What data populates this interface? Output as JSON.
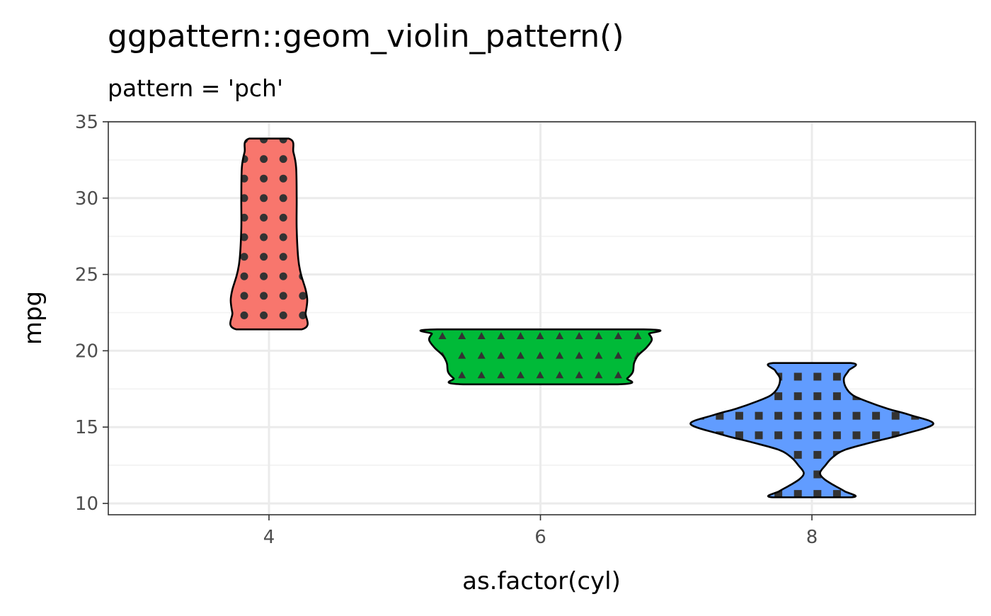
{
  "chart_data": {
    "type": "violin",
    "title": "ggpattern::geom_violin_pattern()",
    "subtitle": "pattern = 'pch'",
    "xlabel": "as.factor(cyl)",
    "ylabel": "mpg",
    "categories": [
      "4",
      "6",
      "8"
    ],
    "ylim": [
      9.4,
      35
    ],
    "yticks": [
      10,
      15,
      20,
      25,
      30,
      35
    ],
    "ytick_labels": [
      "10",
      "15",
      "20",
      "25",
      "30",
      "35"
    ],
    "grid": true,
    "theme": "bw",
    "pattern": "pch",
    "pattern_color": "#333333",
    "border_color": "#000000",
    "series": [
      {
        "category": "4",
        "fill": "#F8766D",
        "pch_shape": "circle",
        "profile": [
          [
            21.4,
            0.12
          ],
          [
            22.5,
            0.135
          ],
          [
            23.3,
            0.141
          ],
          [
            24,
            0.135
          ],
          [
            25,
            0.118
          ],
          [
            26,
            0.108
          ],
          [
            28,
            0.102
          ],
          [
            30,
            0.102
          ],
          [
            32,
            0.1
          ],
          [
            33,
            0.09
          ],
          [
            33.9,
            0.073
          ]
        ]
      },
      {
        "category": "6",
        "fill": "#00BA38",
        "pch_shape": "triangle",
        "profile": [
          [
            17.8,
            0.285
          ],
          [
            18.2,
            0.32
          ],
          [
            18.6,
            0.34
          ],
          [
            19.2,
            0.345
          ],
          [
            19.7,
            0.36
          ],
          [
            20.2,
            0.39
          ],
          [
            20.7,
            0.41
          ],
          [
            21.1,
            0.4
          ],
          [
            21.4,
            0.38
          ]
        ]
      },
      {
        "category": "8",
        "fill": "#619CFF",
        "pch_shape": "square",
        "profile": [
          [
            10.4,
            0.145
          ],
          [
            10.8,
            0.12
          ],
          [
            11.2,
            0.08
          ],
          [
            11.6,
            0.045
          ],
          [
            12.0,
            0.03
          ],
          [
            12.5,
            0.05
          ],
          [
            13.0,
            0.075
          ],
          [
            13.5,
            0.12
          ],
          [
            14.0,
            0.22
          ],
          [
            14.5,
            0.33
          ],
          [
            15.2,
            0.447
          ],
          [
            15.8,
            0.36
          ],
          [
            16.2,
            0.28
          ],
          [
            16.7,
            0.2
          ],
          [
            17.1,
            0.15
          ],
          [
            17.6,
            0.125
          ],
          [
            18.2,
            0.118
          ],
          [
            18.7,
            0.135
          ],
          [
            19.2,
            0.143
          ]
        ]
      }
    ]
  }
}
